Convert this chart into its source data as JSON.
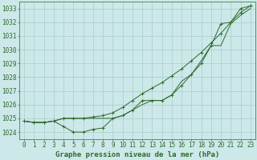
{
  "hours": [
    0,
    1,
    2,
    3,
    4,
    5,
    6,
    7,
    8,
    9,
    10,
    11,
    12,
    13,
    14,
    15,
    16,
    17,
    18,
    19,
    20,
    21,
    22,
    23
  ],
  "series1": [
    1024.8,
    1024.7,
    1024.7,
    1024.8,
    1024.4,
    1024.0,
    1024.0,
    1024.2,
    1024.3,
    1025.0,
    1025.2,
    1025.6,
    1026.3,
    1026.3,
    1026.3,
    1026.7,
    1027.4,
    1028.2,
    1029.0,
    1030.3,
    1031.9,
    1032.0,
    1033.0,
    1033.2
  ],
  "series2": [
    1024.8,
    1024.7,
    1024.7,
    1024.8,
    1025.0,
    1025.0,
    1025.0,
    1025.1,
    1025.2,
    1025.4,
    1025.8,
    1026.3,
    1026.8,
    1027.2,
    1027.6,
    1028.1,
    1028.6,
    1029.2,
    1029.8,
    1030.5,
    1031.2,
    1032.0,
    1032.7,
    1033.2
  ],
  "series3": [
    1024.8,
    1024.7,
    1024.7,
    1024.8,
    1025.0,
    1025.0,
    1025.0,
    1025.0,
    1025.0,
    1025.0,
    1025.2,
    1025.6,
    1026.0,
    1026.3,
    1026.3,
    1026.7,
    1027.7,
    1028.2,
    1029.2,
    1030.3,
    1030.3,
    1031.9,
    1032.5,
    1033.0
  ],
  "line_color": "#2d6a2d",
  "bg_color": "#cce8e8",
  "grid_color": "#aacccc",
  "ylim_min": 1023.5,
  "ylim_max": 1033.5,
  "yticks": [
    1024,
    1025,
    1026,
    1027,
    1028,
    1029,
    1030,
    1031,
    1032,
    1033
  ],
  "xlabel": "Graphe pression niveau de la mer (hPa)",
  "tick_fontsize": 5.5,
  "xlabel_fontsize": 6.5
}
